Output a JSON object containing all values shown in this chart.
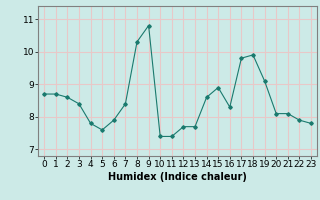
{
  "x": [
    0,
    1,
    2,
    3,
    4,
    5,
    6,
    7,
    8,
    9,
    10,
    11,
    12,
    13,
    14,
    15,
    16,
    17,
    18,
    19,
    20,
    21,
    22,
    23
  ],
  "y": [
    8.7,
    8.7,
    8.6,
    8.4,
    7.8,
    7.6,
    7.9,
    8.4,
    10.3,
    10.8,
    7.4,
    7.4,
    7.7,
    7.7,
    8.6,
    8.9,
    8.3,
    9.8,
    9.9,
    9.1,
    8.1,
    8.1,
    7.9,
    7.8
  ],
  "xlabel": "Humidex (Indice chaleur)",
  "ylim": [
    6.8,
    11.4
  ],
  "xlim": [
    -0.5,
    23.5
  ],
  "yticks": [
    7,
    8,
    9,
    10,
    11
  ],
  "xticks": [
    0,
    1,
    2,
    3,
    4,
    5,
    6,
    7,
    8,
    9,
    10,
    11,
    12,
    13,
    14,
    15,
    16,
    17,
    18,
    19,
    20,
    21,
    22,
    23
  ],
  "line_color": "#1a7a6e",
  "marker": "D",
  "marker_size": 1.8,
  "bg_color": "#cceae7",
  "grid_color": "#e8c8c8",
  "axis_color": "#808080",
  "xlabel_fontsize": 7,
  "tick_fontsize": 6.5
}
